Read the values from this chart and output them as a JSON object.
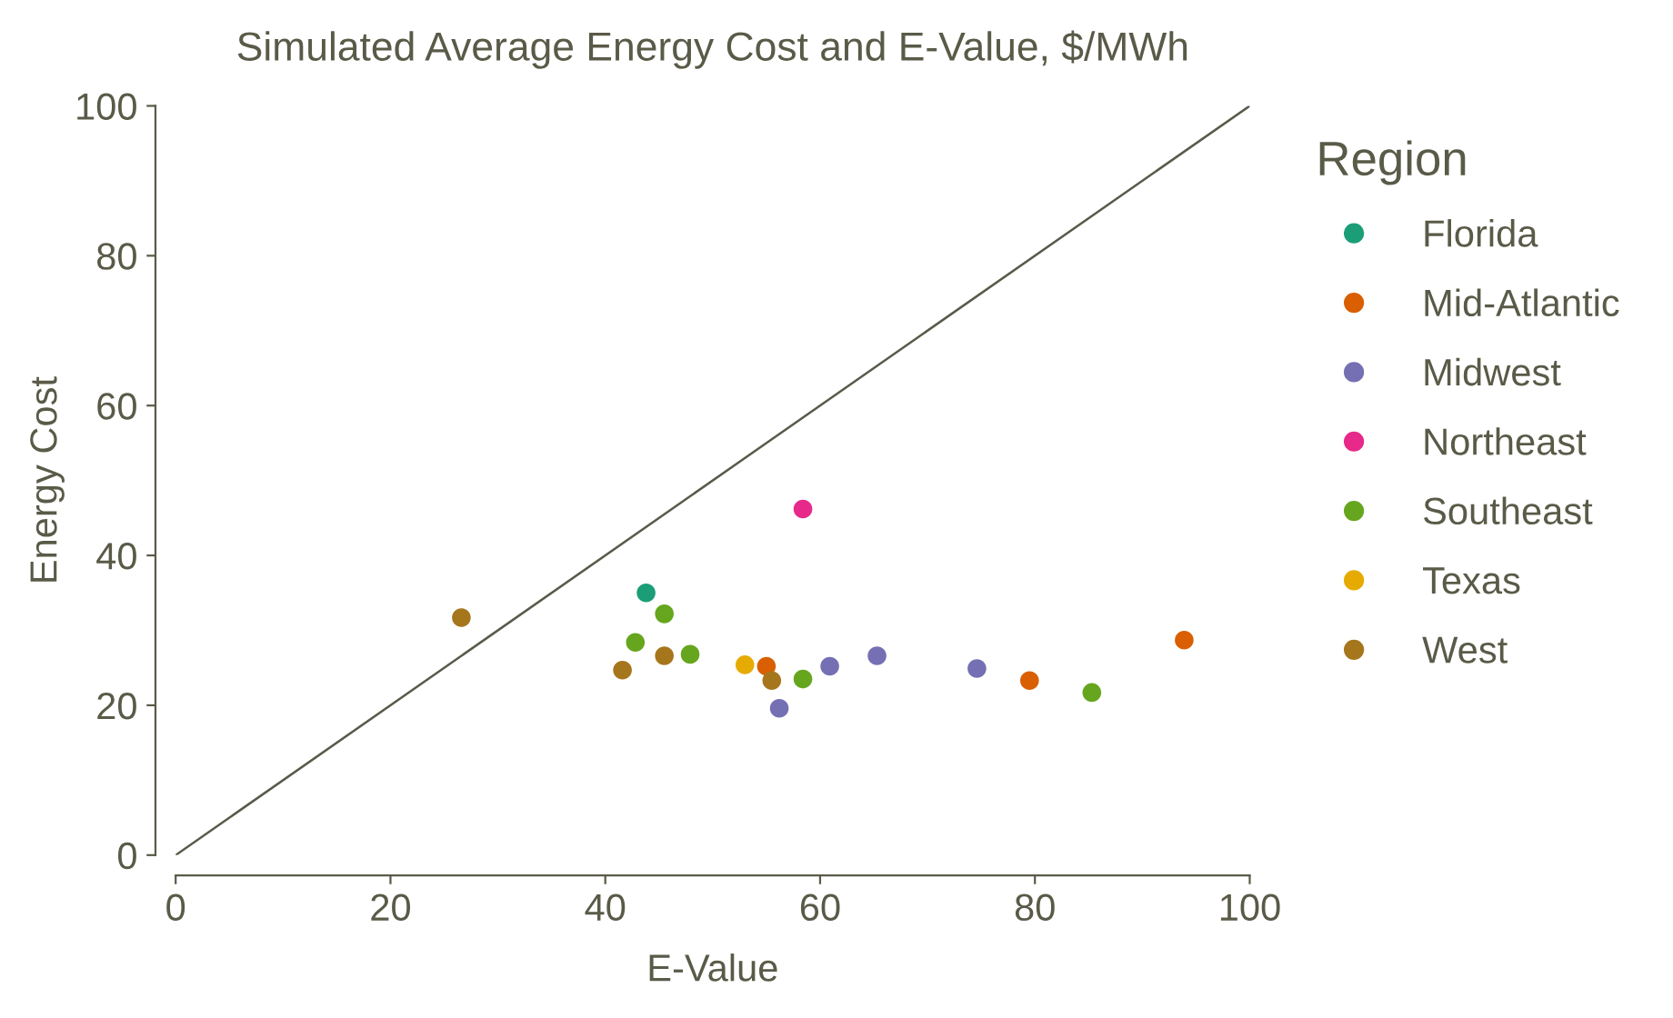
{
  "chart_data": {
    "type": "scatter",
    "title": "Simulated Average Energy Cost and E-Value, $/MWh",
    "xlabel": "E-Value",
    "ylabel": "Energy Cost",
    "legend_title": "Region",
    "legend": "right",
    "grid": false,
    "marker": "circle",
    "xlim": [
      0,
      100
    ],
    "ylim": [
      0,
      100
    ],
    "xticks": [
      0,
      20,
      40,
      60,
      80,
      100
    ],
    "yticks": [
      0,
      20,
      40,
      60,
      80,
      100
    ],
    "series": [
      {
        "type": "line",
        "marker": "none",
        "color": "#5a5a4a",
        "x": [
          0,
          100
        ],
        "values": [
          0,
          100
        ]
      },
      {
        "name": "Florida",
        "color": "#1b9e77",
        "x": [
          43.8
        ],
        "values": [
          35.0
        ]
      },
      {
        "name": "Mid-Atlantic",
        "color": "#d95f02",
        "x": [
          55.0,
          79.5,
          93.9
        ],
        "values": [
          25.2,
          23.3,
          28.7
        ]
      },
      {
        "name": "Midwest",
        "color": "#7570b3",
        "x": [
          56.2,
          60.9,
          65.3,
          74.6
        ],
        "values": [
          19.6,
          25.2,
          26.6,
          24.9
        ]
      },
      {
        "name": "Northeast",
        "color": "#e7298a",
        "x": [
          58.4
        ],
        "values": [
          46.2
        ]
      },
      {
        "name": "Southeast",
        "color": "#66a61e",
        "x": [
          42.8,
          45.5,
          47.9,
          58.4,
          85.3
        ],
        "values": [
          28.4,
          32.2,
          26.8,
          23.5,
          21.7
        ]
      },
      {
        "name": "Texas",
        "color": "#e6ab02",
        "x": [
          53.0
        ],
        "values": [
          25.4
        ]
      },
      {
        "name": "West",
        "color": "#a6761d",
        "x": [
          26.6,
          41.6,
          45.5,
          55.5
        ],
        "values": [
          31.7,
          24.7,
          26.6,
          23.3
        ]
      }
    ]
  }
}
